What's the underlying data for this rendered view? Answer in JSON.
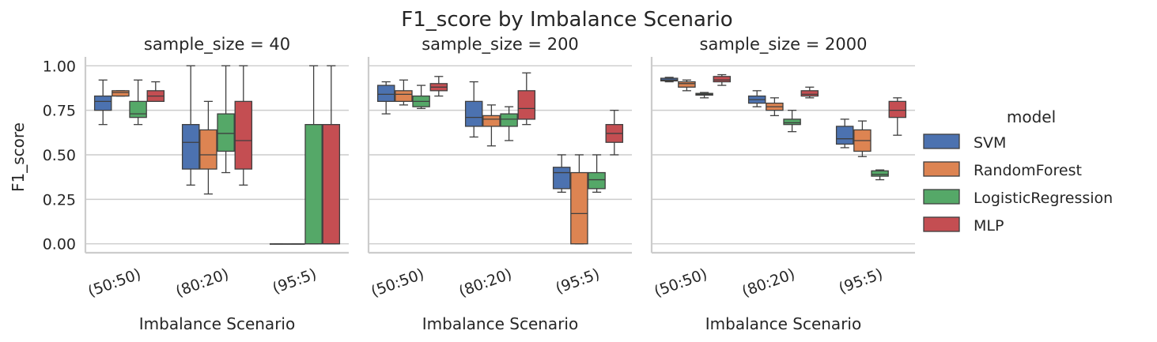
{
  "chart_data": {
    "type": "boxplot",
    "title": "F1_score by Imbalance Scenario",
    "xlabel": "Imbalance Scenario",
    "ylabel": "F1_score",
    "ylim": [
      -0.05,
      1.05
    ],
    "yticks": [
      0.0,
      0.25,
      0.5,
      0.75,
      1.0
    ],
    "ytick_labels": [
      "0.00",
      "0.25",
      "0.50",
      "0.75",
      "1.00"
    ],
    "categories": [
      "(50:50)",
      "(80:20)",
      "(95:5)"
    ],
    "grid": true,
    "legend": {
      "title": "model",
      "position": "right",
      "entries": [
        "SVM",
        "RandomForest",
        "LogisticRegression",
        "MLP"
      ]
    },
    "colors": {
      "SVM": "#4c72b0",
      "RandomForest": "#dd8452",
      "LogisticRegression": "#55a868",
      "MLP": "#c44e52"
    },
    "panels": [
      {
        "title": "sample_size = 40",
        "series": [
          {
            "name": "SVM",
            "boxes": [
              {
                "whislo": 0.67,
                "q1": 0.75,
                "med": 0.8,
                "q3": 0.83,
                "whishi": 0.92
              },
              {
                "whislo": 0.33,
                "q1": 0.42,
                "med": 0.57,
                "q3": 0.67,
                "whishi": 1.0
              },
              {
                "whislo": 0.0,
                "q1": 0.0,
                "med": 0.0,
                "q3": 0.0,
                "whishi": 0.0
              }
            ]
          },
          {
            "name": "RandomForest",
            "boxes": [
              {
                "whislo": 0.83,
                "q1": 0.83,
                "med": 0.85,
                "q3": 0.86,
                "whishi": 0.86
              },
              {
                "whislo": 0.28,
                "q1": 0.42,
                "med": 0.5,
                "q3": 0.64,
                "whishi": 0.8
              },
              {
                "whislo": 0.0,
                "q1": 0.0,
                "med": 0.0,
                "q3": 0.0,
                "whishi": 0.0
              }
            ]
          },
          {
            "name": "LogisticRegression",
            "boxes": [
              {
                "whislo": 0.67,
                "q1": 0.71,
                "med": 0.73,
                "q3": 0.8,
                "whishi": 0.92
              },
              {
                "whislo": 0.4,
                "q1": 0.52,
                "med": 0.62,
                "q3": 0.73,
                "whishi": 1.0
              },
              {
                "whislo": 0.0,
                "q1": 0.0,
                "med": 0.0,
                "q3": 0.67,
                "whishi": 1.0
              }
            ]
          },
          {
            "name": "MLP",
            "boxes": [
              {
                "whislo": 0.8,
                "q1": 0.8,
                "med": 0.83,
                "q3": 0.86,
                "whishi": 0.91
              },
              {
                "whislo": 0.33,
                "q1": 0.42,
                "med": 0.58,
                "q3": 0.8,
                "whishi": 1.0
              },
              {
                "whislo": 0.0,
                "q1": 0.0,
                "med": 0.0,
                "q3": 0.67,
                "whishi": 1.0
              }
            ]
          }
        ]
      },
      {
        "title": "sample_size = 200",
        "series": [
          {
            "name": "SVM",
            "boxes": [
              {
                "whislo": 0.73,
                "q1": 0.8,
                "med": 0.84,
                "q3": 0.89,
                "whishi": 0.91
              },
              {
                "whislo": 0.6,
                "q1": 0.66,
                "med": 0.71,
                "q3": 0.8,
                "whishi": 0.91
              },
              {
                "whislo": 0.29,
                "q1": 0.31,
                "med": 0.4,
                "q3": 0.43,
                "whishi": 0.5
              }
            ]
          },
          {
            "name": "RandomForest",
            "boxes": [
              {
                "whislo": 0.78,
                "q1": 0.8,
                "med": 0.84,
                "q3": 0.86,
                "whishi": 0.92
              },
              {
                "whislo": 0.55,
                "q1": 0.66,
                "med": 0.7,
                "q3": 0.72,
                "whishi": 0.78
              },
              {
                "whislo": 0.0,
                "q1": 0.0,
                "med": 0.17,
                "q3": 0.4,
                "whishi": 0.5
              }
            ]
          },
          {
            "name": "LogisticRegression",
            "boxes": [
              {
                "whislo": 0.76,
                "q1": 0.77,
                "med": 0.8,
                "q3": 0.83,
                "whishi": 0.89
              },
              {
                "whislo": 0.58,
                "q1": 0.66,
                "med": 0.7,
                "q3": 0.73,
                "whishi": 0.77
              },
              {
                "whislo": 0.29,
                "q1": 0.31,
                "med": 0.36,
                "q3": 0.4,
                "whishi": 0.5
              }
            ]
          },
          {
            "name": "MLP",
            "boxes": [
              {
                "whislo": 0.83,
                "q1": 0.86,
                "med": 0.88,
                "q3": 0.9,
                "whishi": 0.94
              },
              {
                "whislo": 0.67,
                "q1": 0.7,
                "med": 0.76,
                "q3": 0.86,
                "whishi": 0.96
              },
              {
                "whislo": 0.5,
                "q1": 0.57,
                "med": 0.62,
                "q3": 0.67,
                "whishi": 0.75
              }
            ]
          }
        ]
      },
      {
        "title": "sample_size = 2000",
        "series": [
          {
            "name": "SVM",
            "boxes": [
              {
                "whislo": 0.91,
                "q1": 0.915,
                "med": 0.92,
                "q3": 0.93,
                "whishi": 0.935
              },
              {
                "whislo": 0.77,
                "q1": 0.79,
                "med": 0.81,
                "q3": 0.83,
                "whishi": 0.86
              },
              {
                "whislo": 0.54,
                "q1": 0.56,
                "med": 0.59,
                "q3": 0.66,
                "whishi": 0.7
              }
            ]
          },
          {
            "name": "RandomForest",
            "boxes": [
              {
                "whislo": 0.86,
                "q1": 0.88,
                "med": 0.9,
                "q3": 0.91,
                "whishi": 0.92
              },
              {
                "whislo": 0.72,
                "q1": 0.75,
                "med": 0.77,
                "q3": 0.79,
                "whishi": 0.82
              },
              {
                "whislo": 0.49,
                "q1": 0.52,
                "med": 0.58,
                "q3": 0.64,
                "whishi": 0.69
              }
            ]
          },
          {
            "name": "LogisticRegression",
            "boxes": [
              {
                "whislo": 0.82,
                "q1": 0.835,
                "med": 0.84,
                "q3": 0.845,
                "whishi": 0.85
              },
              {
                "whislo": 0.63,
                "q1": 0.67,
                "med": 0.68,
                "q3": 0.7,
                "whishi": 0.75
              },
              {
                "whislo": 0.36,
                "q1": 0.38,
                "med": 0.39,
                "q3": 0.41,
                "whishi": 0.415
              }
            ]
          },
          {
            "name": "MLP",
            "boxes": [
              {
                "whislo": 0.89,
                "q1": 0.91,
                "med": 0.92,
                "q3": 0.94,
                "whishi": 0.95
              },
              {
                "whislo": 0.82,
                "q1": 0.83,
                "med": 0.84,
                "q3": 0.86,
                "whishi": 0.88
              },
              {
                "whislo": 0.61,
                "q1": 0.71,
                "med": 0.75,
                "q3": 0.8,
                "whishi": 0.82
              }
            ]
          }
        ]
      }
    ]
  }
}
